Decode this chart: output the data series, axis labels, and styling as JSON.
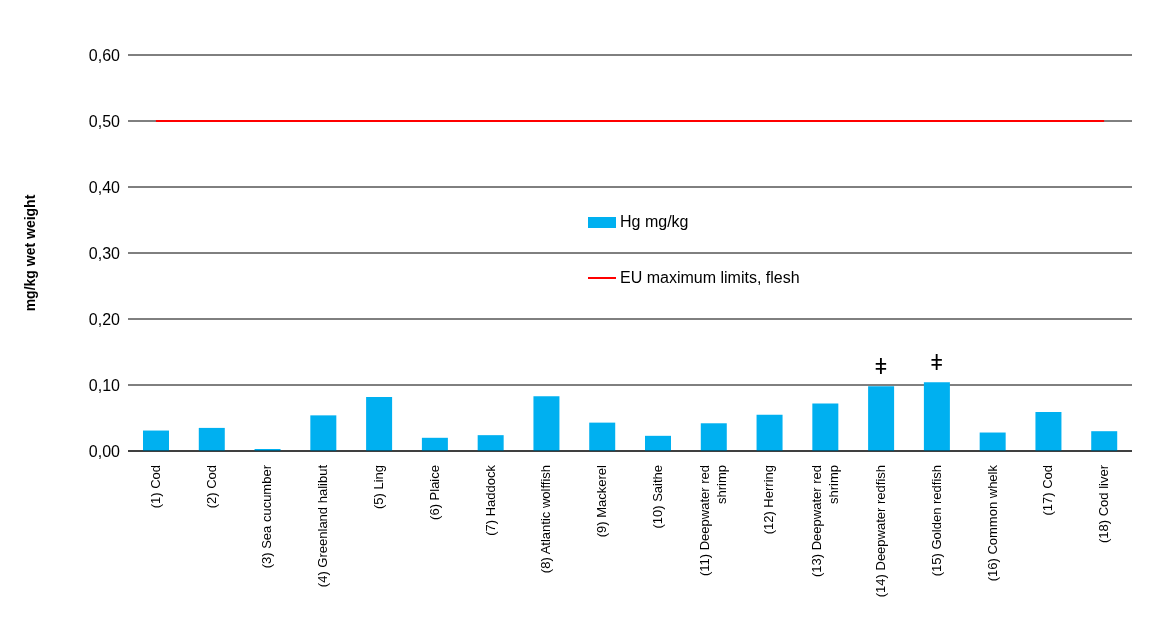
{
  "chart_data": {
    "type": "bar",
    "ylabel": "mg/kg wet weight",
    "categories": [
      "(1) Cod",
      "(2) Cod",
      "(3) Sea cucumber",
      "(4) Greenland halibut",
      "(5) Ling",
      "(6) Plaice",
      "(7) Haddock",
      "(8) Atlantic wolffish",
      "(9) Mackerel",
      "(10) Saithe",
      "(11) Deepwater red shrimp",
      "(12) Herring",
      "(13) Deepwater red shrimp",
      "(14) Deepwater redfish",
      "(15) Golden redfish",
      "(16) Common whelk",
      "(17) Cod",
      "(18) Cod liver"
    ],
    "series": [
      {
        "name": "Hg mg/kg",
        "color": "#00b0f0",
        "values": [
          0.031,
          0.035,
          0.003,
          0.054,
          0.082,
          0.02,
          0.024,
          0.083,
          0.043,
          0.023,
          0.042,
          0.055,
          0.072,
          0.098,
          0.104,
          0.028,
          0.059,
          0.03
        ]
      }
    ],
    "ylim": [
      0,
      0.6
    ],
    "yticks": [
      {
        "value": 0,
        "label": "0,00"
      },
      {
        "value": 0.1,
        "label": "0,10"
      },
      {
        "value": 0.2,
        "label": "0,20"
      },
      {
        "value": 0.3,
        "label": "0,30"
      },
      {
        "value": 0.4,
        "label": "0,40"
      },
      {
        "value": 0.5,
        "label": "0,50"
      },
      {
        "value": 0.6,
        "label": "0,60"
      }
    ],
    "ref_lines": [
      {
        "axis": "y",
        "value": 0.5,
        "label": "EU maximum limits, flesh",
        "color": "#ff0000"
      }
    ],
    "annotations": [
      {
        "text": "ǂ",
        "x": "(14) Deepwater redfish",
        "y": 0.098
      },
      {
        "text": "ǂ",
        "x": "(15) Golden redfish",
        "y": 0.104
      }
    ],
    "grid": "y",
    "legend": "center"
  }
}
